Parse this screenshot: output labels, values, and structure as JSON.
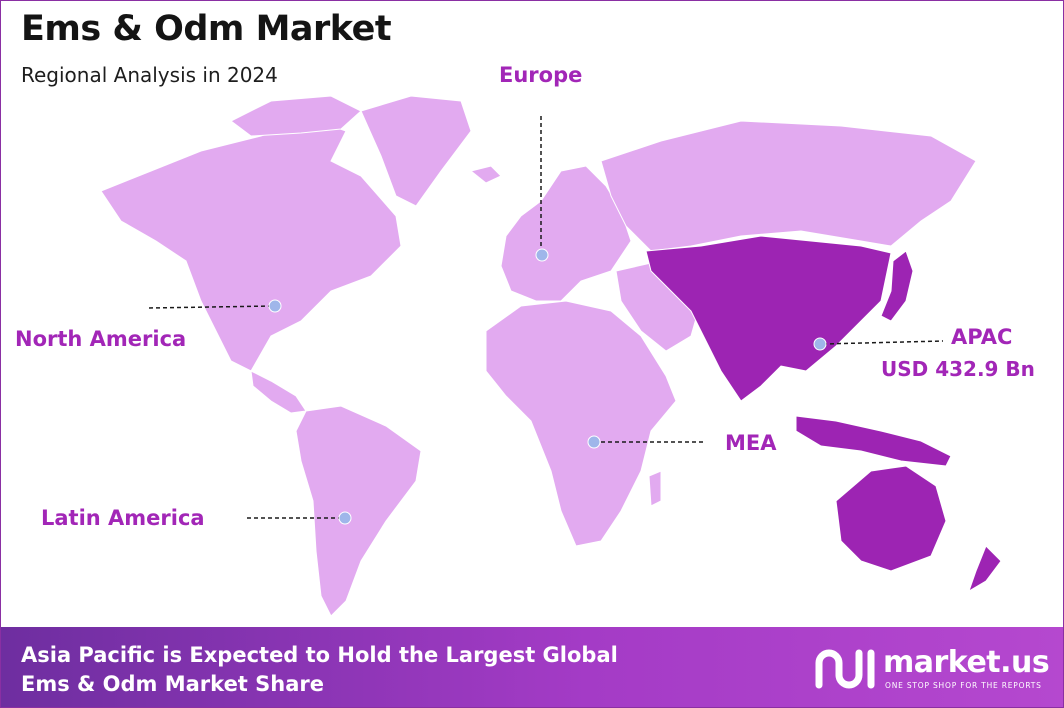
{
  "header": {
    "title": "Ems & Odm Market",
    "subtitle": "Regional Analysis in 2024"
  },
  "regions": [
    {
      "name": "North America",
      "highlighted": false
    },
    {
      "name": "Europe",
      "highlighted": false
    },
    {
      "name": "APAC",
      "value": "USD 432.9 Bn",
      "highlighted": true
    },
    {
      "name": "MEA",
      "highlighted": false
    },
    {
      "name": "Latin America",
      "highlighted": false
    }
  ],
  "colors": {
    "land": "#e2aaf0",
    "highlight": "#9d24b3",
    "label": "#a226b7",
    "marker": "#9fb6ea",
    "footer": "#8b35b3"
  },
  "footer": {
    "line1": "Asia Pacific is Expected to Hold the Largest Global",
    "line2": "Ems & Odm Market Share"
  },
  "brand": {
    "name": "market.us",
    "tagline": "ONE STOP SHOP FOR THE REPORTS",
    "icon": "market-us-logo-icon"
  }
}
